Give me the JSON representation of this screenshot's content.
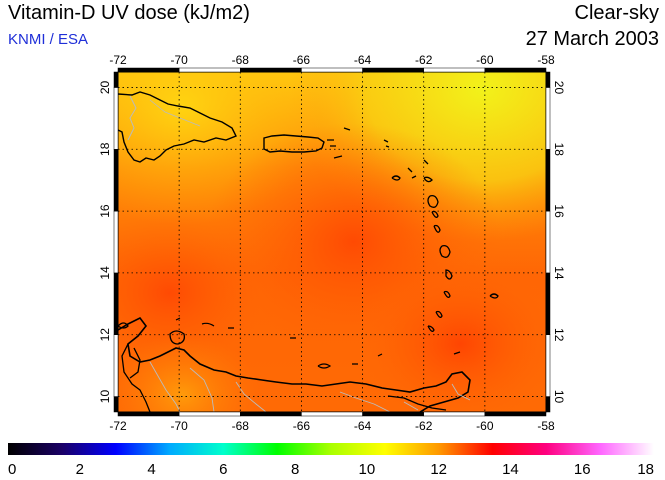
{
  "header": {
    "title": "Vitamin-D UV dose (kJ/m2)",
    "provider": "KNMI / ESA",
    "sky_condition": "Clear-sky",
    "date": "27 March 2003"
  },
  "map": {
    "lon_range": [
      -72,
      -58
    ],
    "lat_range": [
      9.5,
      20.5
    ],
    "lon_ticks": [
      -72,
      -70,
      -68,
      -66,
      -64,
      -62,
      -60,
      -58
    ],
    "lat_ticks": [
      10,
      12,
      14,
      16,
      18,
      20
    ],
    "grid": true,
    "coastline_color": "#000000",
    "border_color": "#bbbbbb"
  },
  "colorbar": {
    "min": 0,
    "max": 18,
    "tick_labels": [
      "0",
      "2",
      "4",
      "6",
      "8",
      "10",
      "12",
      "14",
      "16",
      "18"
    ],
    "colors": [
      "#000000",
      "#1a0066",
      "#0000ff",
      "#00aaff",
      "#00ffcc",
      "#00ff00",
      "#aaff00",
      "#ffff00",
      "#ff9900",
      "#ff0000",
      "#ff0080",
      "#ff66ff",
      "#ffffff"
    ]
  }
}
